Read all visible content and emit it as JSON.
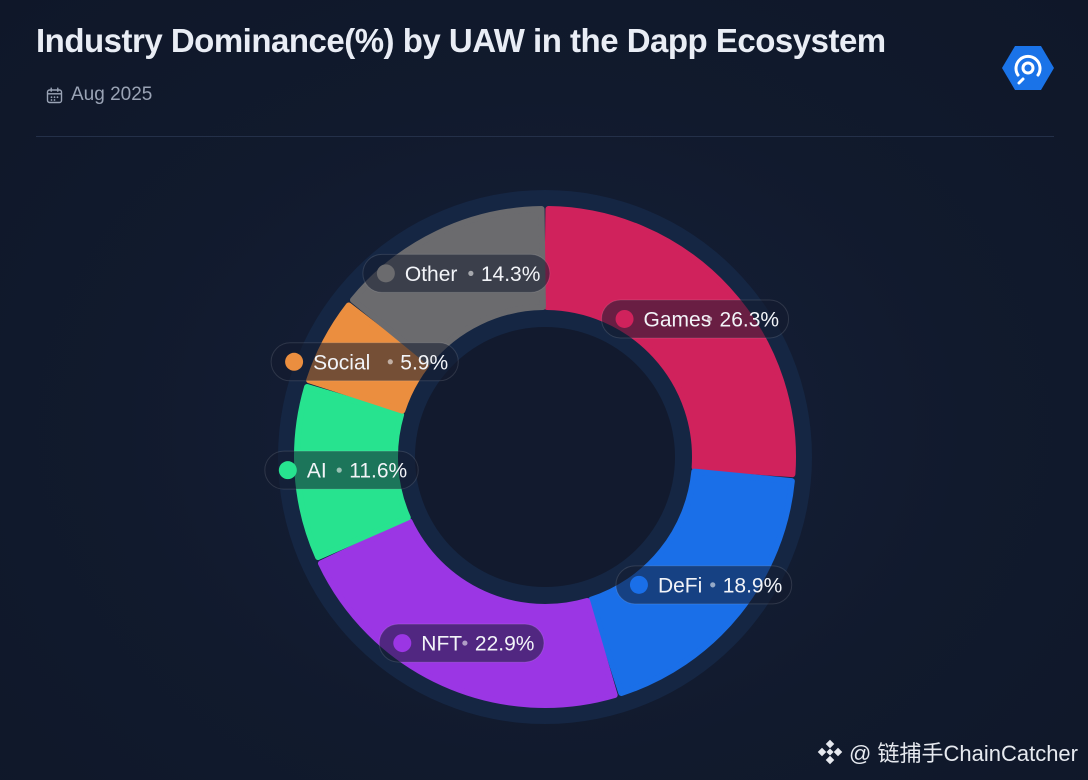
{
  "header": {
    "title": "Industry Dominance(%) by UAW in the Dapp Ecosystem",
    "date": "Aug 2025"
  },
  "watermark": {
    "text": "@ 链捕手ChainCatcher"
  },
  "colors": {
    "background": "#121a2e",
    "accent_logo": "#1a73e8"
  },
  "chart_data": {
    "type": "pie",
    "variant": "donut",
    "title": "Industry Dominance(%) by UAW in the Dapp Ecosystem",
    "unit": "%",
    "series": [
      {
        "name": "Games",
        "value": 26.3,
        "label": "26.3%",
        "color": "#d0225c"
      },
      {
        "name": "DeFi",
        "value": 18.9,
        "label": "18.9%",
        "color": "#1a6fe8"
      },
      {
        "name": "NFT",
        "value": 22.9,
        "label": "22.9%",
        "color": "#9b36e4"
      },
      {
        "name": "AI",
        "value": 11.6,
        "label": "11.6%",
        "color": "#27e38f"
      },
      {
        "name": "Social",
        "value": 5.9,
        "label": "5.9%",
        "color": "#eb8e3f"
      },
      {
        "name": "Other",
        "value": 14.3,
        "label": "14.3%",
        "color": "#6b6b6e"
      }
    ],
    "legend": "inline-labels"
  }
}
